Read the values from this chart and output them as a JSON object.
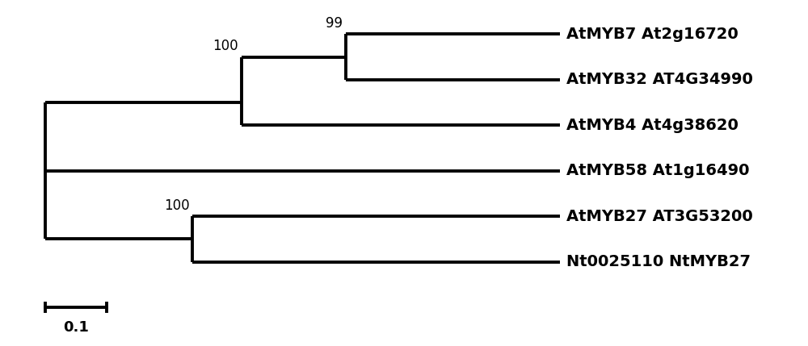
{
  "background_color": "#ffffff",
  "line_color": "#000000",
  "line_width": 2.8,
  "font_size": 14,
  "font_weight": "bold",
  "taxa": [
    "AtMYB7 At2g16720",
    "AtMYB32 AT4G34990",
    "AtMYB4 At4g38620",
    "AtMYB58 At1g16490",
    "AtMYB27 AT3G53200",
    "Nt0025110 NtMYB27"
  ],
  "figsize": [
    10.0,
    4.29
  ],
  "dpi": 100,
  "scale_bar_label": "0.1"
}
